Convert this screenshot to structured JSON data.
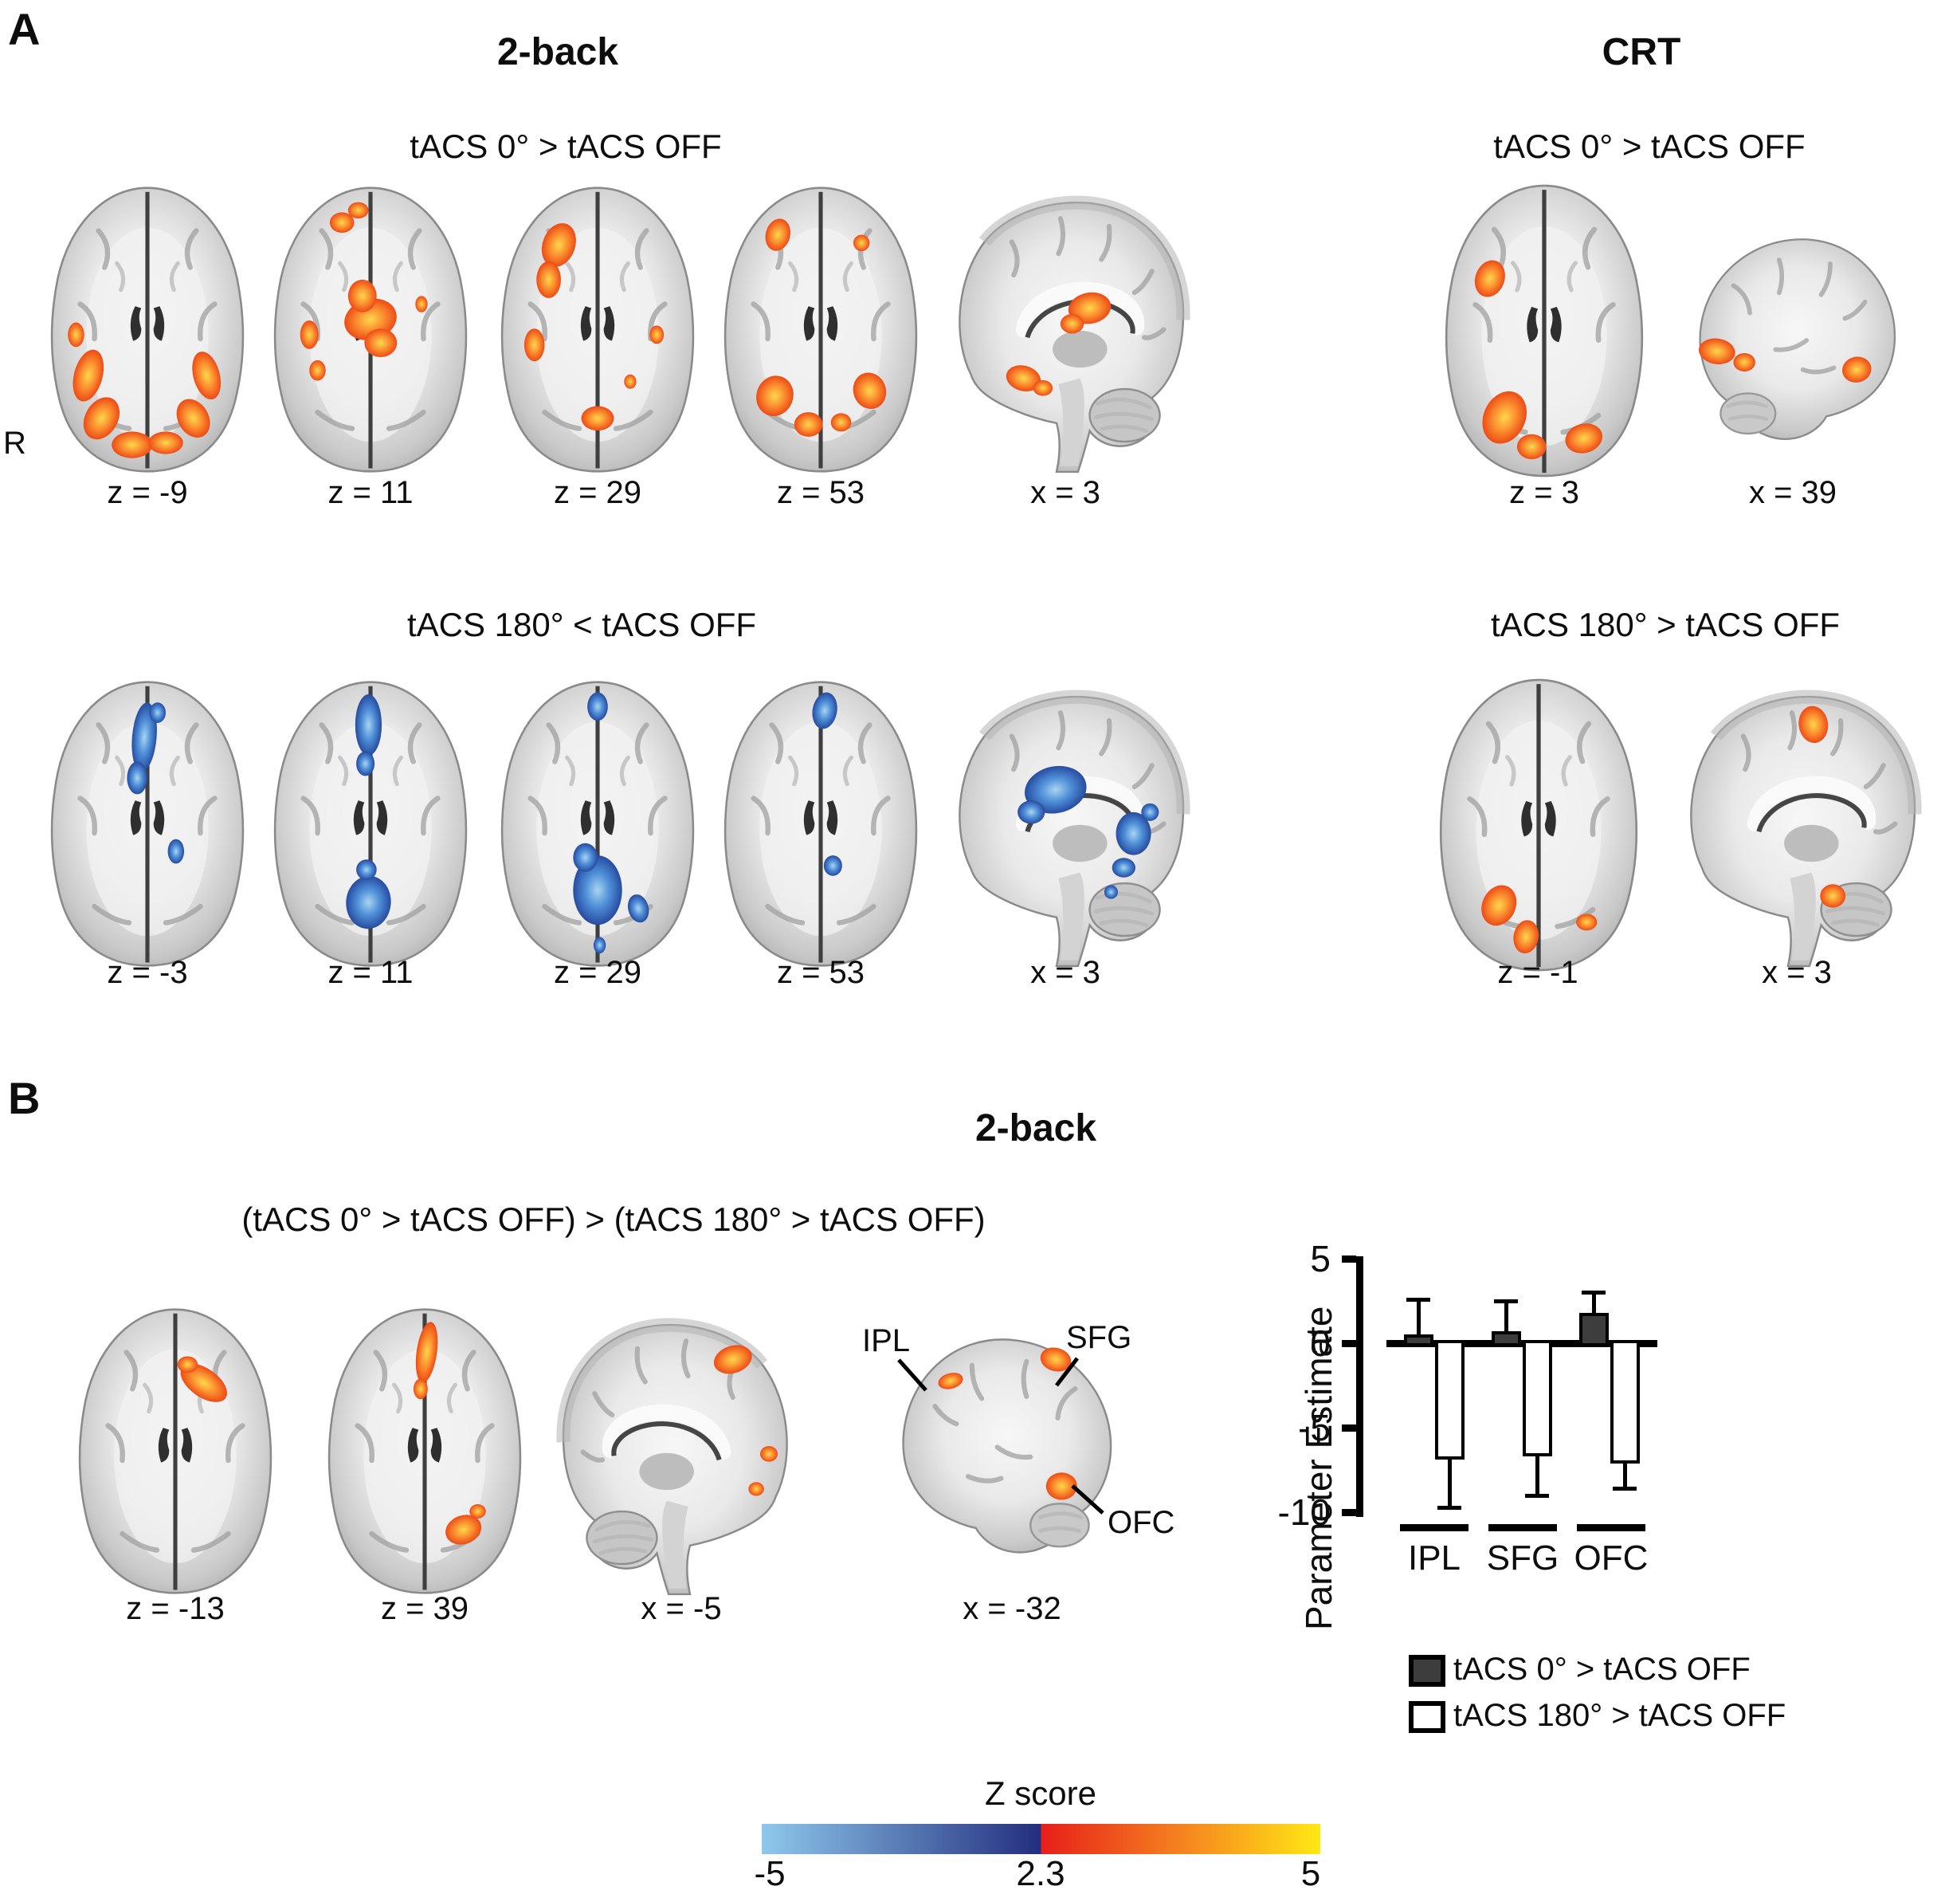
{
  "panel_a": {
    "label": "A",
    "orientation_label": "R",
    "two_back": {
      "title": "2-back",
      "row1": {
        "contrast": "tACS 0° > tACS OFF",
        "slice_labels": [
          "z = -9",
          "z = 11",
          "z = 29",
          "z = 53",
          "x = 3"
        ]
      },
      "row2": {
        "contrast": "tACS 180° < tACS OFF",
        "slice_labels": [
          "z = -3",
          "z = 11",
          "z = 29",
          "z = 53",
          "x = 3"
        ]
      }
    },
    "crt": {
      "title": "CRT",
      "row1": {
        "contrast": "tACS 0° > tACS OFF",
        "slice_labels": [
          "z = 3",
          "x = 39"
        ]
      },
      "row2": {
        "contrast": "tACS 180° > tACS OFF",
        "slice_labels": [
          "z = -1",
          "x = 3"
        ]
      }
    }
  },
  "panel_b": {
    "label": "B",
    "title": "2-back",
    "contrast": "(tACS 0° > tACS OFF) > (tACS 180° > tACS OFF)",
    "slice_labels": [
      "z = -13",
      "z = 39",
      "x = -5",
      "x = -32"
    ],
    "region_annotations": [
      "IPL",
      "SFG",
      "OFC"
    ]
  },
  "chart_data": {
    "type": "bar",
    "ylabel": "Parameter Estimate",
    "categories": [
      "IPL",
      "SFG",
      "OFC"
    ],
    "series": [
      {
        "name": "tACS 0° > tACS OFF",
        "fill": "#3d3d3d",
        "values": [
          0.5,
          0.7,
          1.8
        ],
        "errors": [
          2.1,
          1.8,
          1.2
        ],
        "error_dir": "up"
      },
      {
        "name": "tACS 180° > tACS OFF",
        "fill": "#ffffff",
        "values": [
          -6.9,
          -6.7,
          -7.1
        ],
        "errors": [
          2.8,
          2.3,
          1.5
        ],
        "error_dir": "down"
      }
    ],
    "yticks": [
      5,
      0,
      -5,
      -10
    ],
    "ylim": [
      -10.5,
      5
    ],
    "grid": false,
    "legend_position": "below"
  },
  "colorbar": {
    "title": "Z score",
    "tick_labels": [
      "-5",
      "2.3",
      "5"
    ],
    "negative_gradient": [
      "#8ec8ec",
      "#232e7e"
    ],
    "positive_gradient": [
      "#e71f19",
      "#f58220",
      "#ffe814"
    ]
  },
  "activation_colors": {
    "positive": "#f26722",
    "negative": "#3d6fc4"
  }
}
